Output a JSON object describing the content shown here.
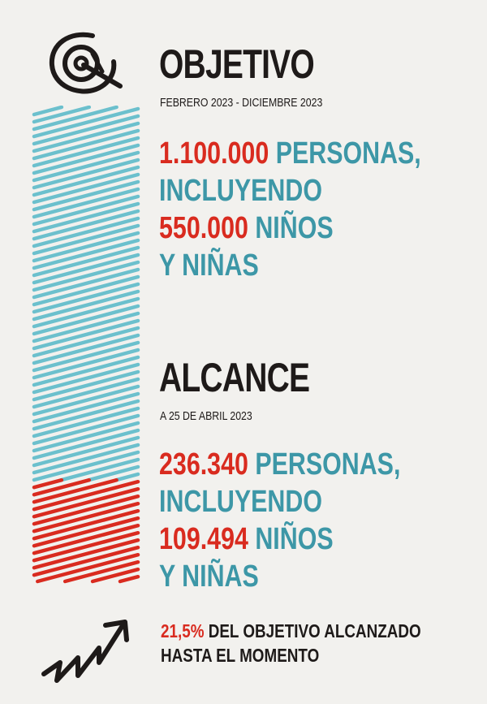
{
  "objective": {
    "title": "OBJETIVO",
    "period": "FEBRERO 2023 - DICIEMBRE 2023",
    "people_number": "1.100.000",
    "people_text": " PERSONAS,",
    "including": "INCLUYENDO",
    "children_number": "550.000",
    "children_text": " NIÑOS",
    "children_line2": "Y NIÑAS"
  },
  "reach": {
    "title": "ALCANCE",
    "date": "A 25 DE ABRIL 2023",
    "people_number": "236.340",
    "people_text": " PERSONAS,",
    "including": "INCLUYENDO",
    "children_number": "109.494",
    "children_text": " NIÑOS",
    "children_line2": "Y NIÑAS"
  },
  "progress": {
    "percent_text": "21,5%",
    "line1_text": " DEL OBJETIVO ALCANZADO",
    "line2_text": "HASTA EL MOMENTO",
    "fraction": 0.215
  },
  "colors": {
    "background": "#f2f1ee",
    "teal": "#3d97a7",
    "hatch_teal": "#6cc0cd",
    "red": "#d92b1f",
    "dark": "#1e1a19"
  },
  "icons": {
    "objective": "target-icon",
    "progress": "trend-up-arrow-icon"
  }
}
